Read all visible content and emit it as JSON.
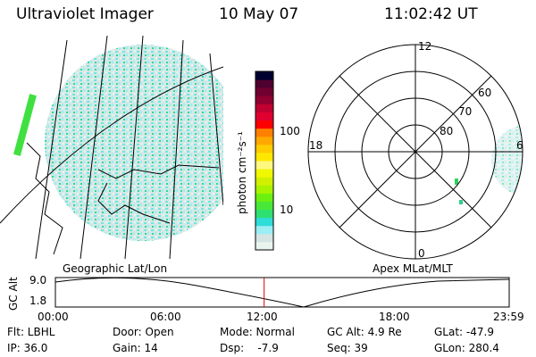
{
  "header": {
    "instrument": "Ultraviolet Imager",
    "date": "10 May 07",
    "time": "11:02:42 UT"
  },
  "colorbar": {
    "unit_label": "photon cm⁻²s⁻¹",
    "tick_100": "100",
    "tick_10": "10",
    "colors": [
      "#eaf4ee",
      "#d3e4e2",
      "#9beef4",
      "#2edcd8",
      "#2ee070",
      "#48e838",
      "#6cf010",
      "#a8f400",
      "#d0f000",
      "#f0f800",
      "#fff880",
      "#ffe800",
      "#ffcc00",
      "#ffa800",
      "#ff8000",
      "#ff0000",
      "#e00030",
      "#c00030",
      "#900030",
      "#700030",
      "#500030",
      "#000030"
    ]
  },
  "polar": {
    "label_12": "12",
    "label_6": "6",
    "label_18": "18",
    "label_0": "0",
    "lat_80": "80",
    "lat_70": "70",
    "lat_60": "60"
  },
  "timeline": {
    "left_label": "Geographic Lat/Lon",
    "right_label": "Apex MLat/MLT",
    "y_label": "GC Alt",
    "y_max": "9.0",
    "y_min": "1.8",
    "ticks": [
      "00:00",
      "06:00",
      "12:00",
      "18:00",
      "23:59"
    ],
    "current_time_fraction": 0.46
  },
  "status": {
    "flt": "Flt: LBHL",
    "ip": "IP: 36.0",
    "door": "Door: Open",
    "gain": "Gain: 14",
    "mode": "Mode: Normal",
    "dsp": "Dsp:    -7.9",
    "gcalt": "GC Alt: 4.9 Re",
    "seq": "Seq: 39",
    "glat": "GLat: -47.9",
    "glon": "GLon: 280.4"
  }
}
